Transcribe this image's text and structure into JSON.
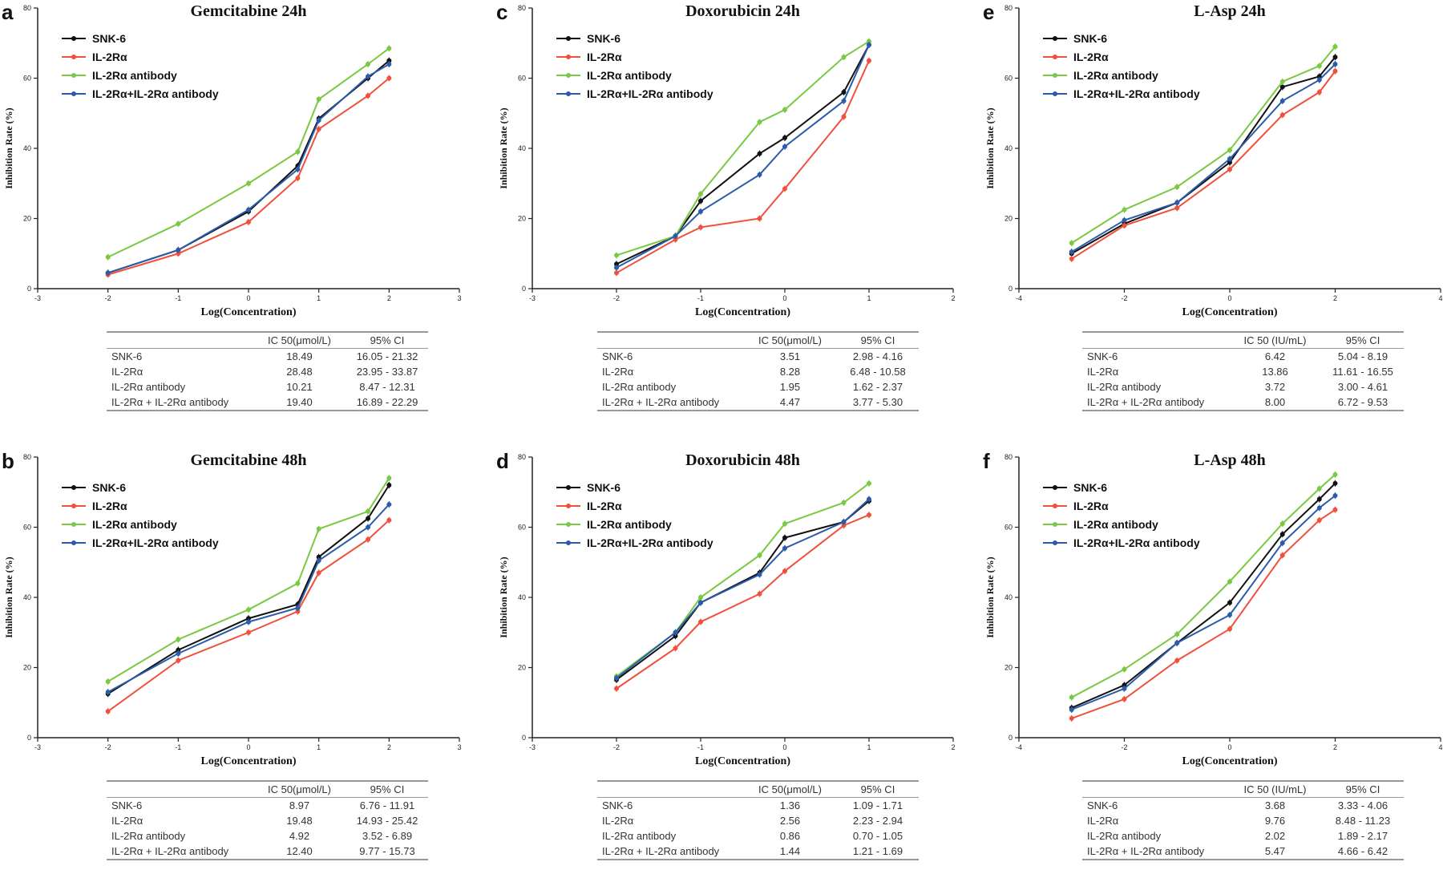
{
  "x_axis_label": "Log(Concentration)",
  "y_axis_label": "Inhibition Rate (%)",
  "table_header": {
    "label": "",
    "ic50_umol": "IC 50(μmol/L)",
    "ic50_iu": "IC 50 (IU/mL)",
    "ci": "95% CI"
  },
  "colors": {
    "SNK-6": "#111111",
    "IL-2Rα": "#f0503c",
    "IL-2Rα antibody": "#7ac943",
    "IL-2Rα+IL-2Rα antibody": "#2a5caa"
  },
  "chart_data": [
    {
      "letter": "a",
      "type": "line",
      "title": "Gemcitabine 24h",
      "xlabel": "Log(Concentration)",
      "ylabel": "Inhibition Rate (%)",
      "xlim": [
        -3,
        3
      ],
      "ylim": [
        0,
        80
      ],
      "xticks": [
        -3,
        -2,
        -1,
        0,
        1,
        2,
        3
      ],
      "yticks": [
        0,
        20,
        40,
        60,
        80
      ],
      "x": [
        -2,
        -1,
        0,
        0.7,
        1,
        1.7,
        2
      ],
      "series": [
        {
          "name": "SNK-6",
          "values": [
            4.5,
            11,
            22,
            35,
            48.5,
            60,
            65
          ]
        },
        {
          "name": "IL-2Rα",
          "values": [
            4,
            10,
            19,
            31.5,
            45.5,
            55,
            60
          ]
        },
        {
          "name": "IL-2Rα antibody",
          "values": [
            9,
            18.5,
            30,
            39,
            54,
            64,
            68.5
          ]
        },
        {
          "name": "IL-2Rα+IL-2Rα antibody",
          "values": [
            4.5,
            11,
            22.5,
            34,
            48,
            60.5,
            64
          ]
        }
      ],
      "legend": "top-left",
      "ic50_unit": "umol",
      "table": [
        {
          "label": "SNK-6",
          "ic50": "18.49",
          "ci": "16.05 - 21.32"
        },
        {
          "label": "IL-2Rα",
          "ic50": "28.48",
          "ci": "23.95 - 33.87"
        },
        {
          "label": "IL-2Rα antibody",
          "ic50": "10.21",
          "ci": "8.47 - 12.31"
        },
        {
          "label": "IL-2Rα + IL-2Rα antibody",
          "ic50": "19.40",
          "ci": "16.89 - 22.29"
        }
      ]
    },
    {
      "letter": "b",
      "type": "line",
      "title": "Gemcitabine 48h",
      "xlabel": "Log(Concentration)",
      "ylabel": "Inhibition Rate (%)",
      "xlim": [
        -3,
        3
      ],
      "ylim": [
        0,
        80
      ],
      "xticks": [
        -3,
        -2,
        -1,
        0,
        1,
        2,
        3
      ],
      "yticks": [
        0,
        20,
        40,
        60,
        80
      ],
      "x": [
        -2,
        -1,
        0,
        0.7,
        1,
        1.7,
        2
      ],
      "series": [
        {
          "name": "SNK-6",
          "values": [
            12.5,
            25,
            34,
            38,
            51.5,
            62.5,
            72
          ]
        },
        {
          "name": "IL-2Rα",
          "values": [
            7.5,
            22,
            30,
            36,
            47,
            56.5,
            62
          ]
        },
        {
          "name": "IL-2Rα antibody",
          "values": [
            16,
            28,
            36.5,
            44,
            59.5,
            64.5,
            74
          ]
        },
        {
          "name": "IL-2Rα+IL-2Rα antibody",
          "values": [
            13,
            24,
            33,
            37,
            50.5,
            60,
            66.5
          ]
        }
      ],
      "legend": "top-left",
      "ic50_unit": "umol",
      "table": [
        {
          "label": "SNK-6",
          "ic50": "8.97",
          "ci": "6.76 - 11.91"
        },
        {
          "label": "IL-2Rα",
          "ic50": "19.48",
          "ci": "14.93 - 25.42"
        },
        {
          "label": "IL-2Rα antibody",
          "ic50": "4.92",
          "ci": "3.52 - 6.89"
        },
        {
          "label": "IL-2Rα + IL-2Rα antibody",
          "ic50": "12.40",
          "ci": "9.77 - 15.73"
        }
      ]
    },
    {
      "letter": "c",
      "type": "line",
      "title": "Doxorubicin 24h",
      "xlabel": "Log(Concentration)",
      "ylabel": "Inhibition Rate (%)",
      "xlim": [
        -3,
        2
      ],
      "ylim": [
        0,
        80
      ],
      "xticks": [
        -3,
        -2,
        -1,
        0,
        1,
        2
      ],
      "yticks": [
        0,
        20,
        40,
        60,
        80
      ],
      "x": [
        -2,
        -1.3,
        -1,
        -0.3,
        0,
        0.7,
        1
      ],
      "series": [
        {
          "name": "SNK-6",
          "values": [
            7,
            15,
            25,
            38.5,
            43,
            56,
            69.5
          ]
        },
        {
          "name": "IL-2Rα",
          "values": [
            4.5,
            14,
            17.5,
            20,
            28.5,
            49,
            65
          ]
        },
        {
          "name": "IL-2Rα antibody",
          "values": [
            9.5,
            15,
            27,
            47.5,
            51,
            66,
            70.5
          ]
        },
        {
          "name": "IL-2Rα+IL-2Rα antibody",
          "values": [
            6,
            15,
            22,
            32.5,
            40.5,
            53.5,
            69.5
          ]
        }
      ],
      "legend": "top-left",
      "ic50_unit": "umol",
      "table": [
        {
          "label": "SNK-6",
          "ic50": "3.51",
          "ci": "2.98 - 4.16"
        },
        {
          "label": "IL-2Rα",
          "ic50": "8.28",
          "ci": "6.48 - 10.58"
        },
        {
          "label": "IL-2Rα antibody",
          "ic50": "1.95",
          "ci": "1.62 - 2.37"
        },
        {
          "label": "IL-2Rα + IL-2Rα antibody",
          "ic50": "4.47",
          "ci": "3.77 - 5.30"
        }
      ]
    },
    {
      "letter": "d",
      "type": "line",
      "title": "Doxorubicin 48h",
      "xlabel": "Log(Concentration)",
      "ylabel": "Inhibition Rate (%)",
      "xlim": [
        -3,
        2
      ],
      "ylim": [
        0,
        80
      ],
      "xticks": [
        -3,
        -2,
        -1,
        0,
        1,
        2
      ],
      "yticks": [
        0,
        20,
        40,
        60,
        80
      ],
      "x": [
        -2,
        -1.3,
        -1,
        -0.3,
        0,
        0.7,
        1
      ],
      "series": [
        {
          "name": "SNK-6",
          "values": [
            16.5,
            29,
            38.5,
            47,
            57,
            61.5,
            67.5
          ]
        },
        {
          "name": "IL-2Rα",
          "values": [
            14,
            25.5,
            33,
            41,
            47.5,
            60.5,
            63.5
          ]
        },
        {
          "name": "IL-2Rα antibody",
          "values": [
            17.5,
            30,
            40,
            52,
            61,
            67,
            72.5
          ]
        },
        {
          "name": "IL-2Rα+IL-2Rα antibody",
          "values": [
            17,
            30,
            38.5,
            46.5,
            54,
            61.5,
            68
          ]
        }
      ],
      "legend": "top-left",
      "ic50_unit": "umol",
      "table": [
        {
          "label": "SNK-6",
          "ic50": "1.36",
          "ci": "1.09 - 1.71"
        },
        {
          "label": "IL-2Rα",
          "ic50": "2.56",
          "ci": "2.23 - 2.94"
        },
        {
          "label": "IL-2Rα antibody",
          "ic50": "0.86",
          "ci": "0.70 - 1.05"
        },
        {
          "label": "IL-2Rα + IL-2Rα antibody",
          "ic50": "1.44",
          "ci": "1.21 - 1.69"
        }
      ]
    },
    {
      "letter": "e",
      "type": "line",
      "title": "L-Asp 24h",
      "xlabel": "Log(Concentration)",
      "ylabel": "Inhibition Rate (%)",
      "xlim": [
        -4,
        4
      ],
      "ylim": [
        0,
        80
      ],
      "xticks": [
        -4,
        -2,
        0,
        2,
        4
      ],
      "yticks": [
        0,
        20,
        40,
        60,
        80
      ],
      "x": [
        -3,
        -2,
        -1,
        0,
        1,
        1.7,
        2
      ],
      "series": [
        {
          "name": "SNK-6",
          "values": [
            10,
            18.5,
            24.5,
            36,
            57.5,
            60.5,
            66
          ]
        },
        {
          "name": "IL-2Rα",
          "values": [
            8.5,
            18,
            23,
            34,
            49.5,
            56,
            62
          ]
        },
        {
          "name": "IL-2Rα antibody",
          "values": [
            13,
            22.5,
            29,
            39.5,
            59,
            63.5,
            69
          ]
        },
        {
          "name": "IL-2Rα+IL-2Rα antibody",
          "values": [
            10.5,
            19.5,
            24.5,
            37,
            53.5,
            59.5,
            64
          ]
        }
      ],
      "legend": "top-left",
      "ic50_unit": "iu",
      "table": [
        {
          "label": "SNK-6",
          "ic50": "6.42",
          "ci": "5.04 - 8.19"
        },
        {
          "label": "IL-2Rα",
          "ic50": "13.86",
          "ci": "11.61 - 16.55"
        },
        {
          "label": "IL-2Rα antibody",
          "ic50": "3.72",
          "ci": "3.00 - 4.61"
        },
        {
          "label": "IL-2Rα + IL-2Rα antibody",
          "ic50": "8.00",
          "ci": "6.72 - 9.53"
        }
      ]
    },
    {
      "letter": "f",
      "type": "line",
      "title": "L-Asp 48h",
      "xlabel": "Log(Concentration)",
      "ylabel": "Inhibition Rate (%)",
      "xlim": [
        -4,
        4
      ],
      "ylim": [
        0,
        80
      ],
      "xticks": [
        -4,
        -2,
        0,
        2,
        4
      ],
      "yticks": [
        0,
        20,
        40,
        60,
        80
      ],
      "x": [
        -3,
        -2,
        -1,
        0,
        1,
        1.7,
        2
      ],
      "series": [
        {
          "name": "SNK-6",
          "values": [
            8.5,
            15,
            27,
            38.5,
            58,
            68,
            72.5
          ]
        },
        {
          "name": "IL-2Rα",
          "values": [
            5.5,
            11,
            22,
            31,
            52,
            62,
            65
          ]
        },
        {
          "name": "IL-2Rα antibody",
          "values": [
            11.5,
            19.5,
            29.5,
            44.5,
            61,
            71,
            75
          ]
        },
        {
          "name": "IL-2Rα+IL-2Rα antibody",
          "values": [
            8,
            14,
            27,
            35,
            55.5,
            65.5,
            69
          ]
        }
      ],
      "legend": "top-left",
      "ic50_unit": "iu",
      "table": [
        {
          "label": "SNK-6",
          "ic50": "3.68",
          "ci": "3.33 - 4.06"
        },
        {
          "label": "IL-2Rα",
          "ic50": "9.76",
          "ci": "8.48 - 11.23"
        },
        {
          "label": "IL-2Rα antibody",
          "ic50": "2.02",
          "ci": "1.89 - 2.17"
        },
        {
          "label": "IL-2Rα + IL-2Rα antibody",
          "ic50": "5.47",
          "ci": "4.66 - 6.42"
        }
      ]
    }
  ]
}
